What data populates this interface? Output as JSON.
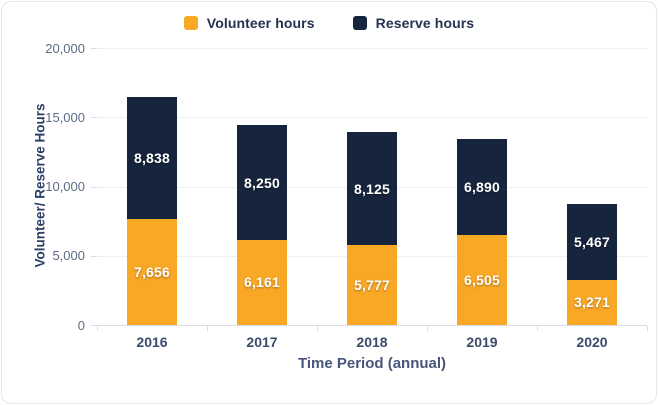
{
  "chart_data": {
    "type": "bar",
    "stacked": true,
    "categories": [
      "2016",
      "2017",
      "2018",
      "2019",
      "2020"
    ],
    "series": [
      {
        "name": "Volunteer hours",
        "color": "#F9A826",
        "values": [
          7656,
          6161,
          5777,
          6505,
          3271
        ]
      },
      {
        "name": "Reserve hours",
        "color": "#16253D",
        "values": [
          8838,
          8250,
          8125,
          6890,
          5467
        ]
      }
    ],
    "value_labels": [
      [
        "7,656",
        "6,161",
        "5,777",
        "6,505",
        "3,271"
      ],
      [
        "8,838",
        "8,250",
        "8,125",
        "6,890",
        "5,467"
      ]
    ],
    "xlabel": "Time Period (annual)",
    "ylabel": "Volunteer/ Reserve Hours",
    "ylim": [
      0,
      20000
    ],
    "ytick_step": 5000,
    "ytick_labels": [
      "0",
      "5,000",
      "10,000",
      "15,000",
      "20,000"
    ],
    "grid": true,
    "legend_position": "top",
    "bar_value_text_color": "#FFFFFF"
  }
}
